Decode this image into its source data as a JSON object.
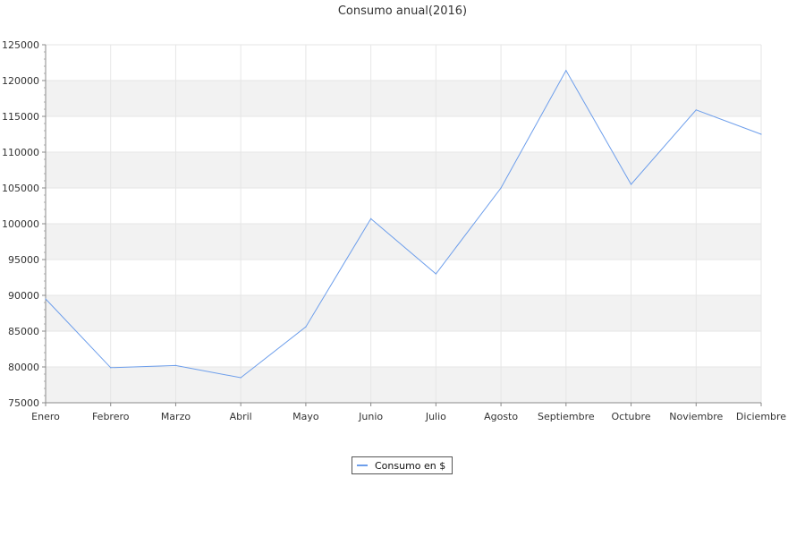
{
  "chart_data": {
    "type": "line",
    "title": "Consumo anual(2016)",
    "xlabel": "",
    "ylabel": "",
    "categories": [
      "Enero",
      "Febrero",
      "Marzo",
      "Abril",
      "Mayo",
      "Junio",
      "Julio",
      "Agosto",
      "Septiembre",
      "Octubre",
      "Noviembre",
      "Diciembre"
    ],
    "series": [
      {
        "name": "Consumo en $",
        "color": "#6d9eeb",
        "values": [
          89500,
          79900,
          80200,
          78500,
          85600,
          100700,
          93000,
          105000,
          121400,
          105500,
          115900,
          112500
        ]
      }
    ],
    "ylim": [
      75000,
      125000
    ],
    "yticks": [
      75000,
      80000,
      85000,
      90000,
      95000,
      100000,
      105000,
      110000,
      115000,
      120000,
      125000
    ],
    "grid": true,
    "band_color": "#f2f2f2",
    "legend_position": "bottom-center"
  }
}
